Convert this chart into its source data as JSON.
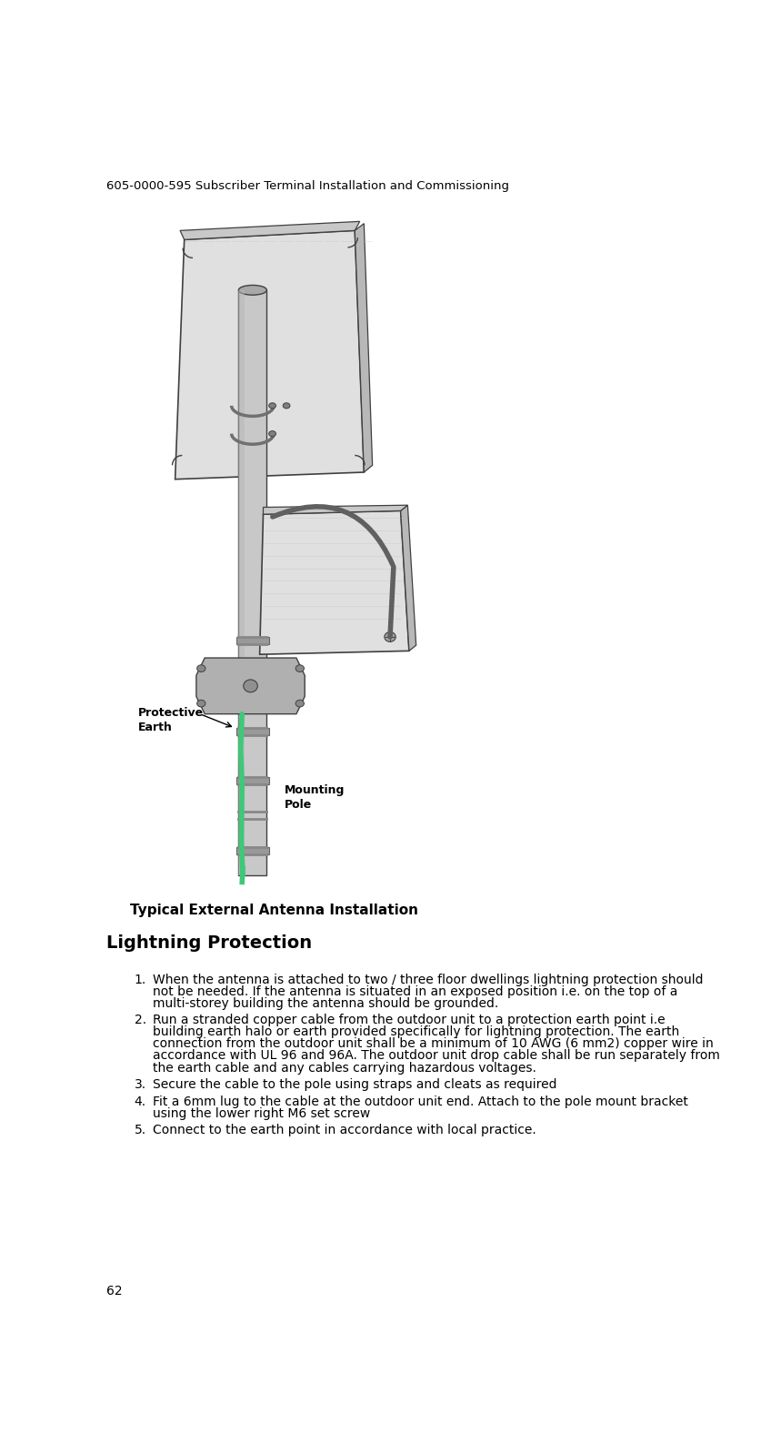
{
  "header_text": "605-0000-595 Subscriber Terminal Installation and Commissioning",
  "page_number": "62",
  "figure_caption": "Typical External Antenna Installation",
  "section_title": "Lightning Protection",
  "background_color": "#ffffff",
  "text_color": "#000000",
  "header_fontsize": 9.5,
  "title_fontsize": 13,
  "body_fontsize": 10,
  "caption_fontsize": 10,
  "label_protective_earth": "Protective\nEarth",
  "label_mounting_pole": "Mounting\nPole",
  "items": [
    "When the antenna is attached to two / three floor dwellings lightning protection should not be needed. If the antenna is situated in an exposed position i.e. on the top of a multi-storey building the antenna should be grounded.",
    "Run a stranded copper cable from the outdoor unit to a protection earth point i.e building earth halo or earth provided specifically for lightning protection. The earth connection from the outdoor unit shall be a minimum of 10 AWG (6 mm2) copper wire in accordance with UL 96 and 96A. The outdoor unit drop cable shall be run separately from the earth cable and any cables carrying hazardous voltages.",
    "Secure the cable to the pole using straps and cleats as required",
    "Fit a 6mm lug to the cable at the outdoor unit end. Attach to the pole mount bracket using the lower right M6 set screw",
    "Connect to the earth point in accordance with local practice."
  ]
}
